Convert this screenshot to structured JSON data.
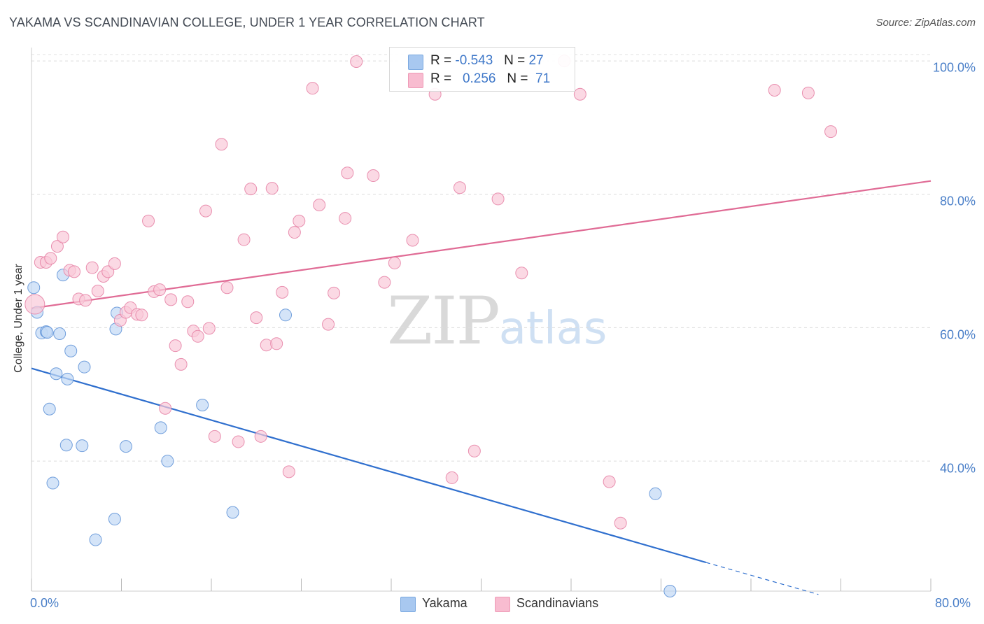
{
  "title": "YAKAMA VS SCANDINAVIAN COLLEGE, UNDER 1 YEAR CORRELATION CHART",
  "source": "Source: ZipAtlas.com",
  "watermark": {
    "zip": "ZIP",
    "atlas": "atlas"
  },
  "legend": {
    "yakama": {
      "r_label": "R =",
      "r_value": "-0.543",
      "n_label": "N =",
      "n_value": "27",
      "color": "#a8c8f0",
      "border": "#7aa8e0"
    },
    "scandinavians": {
      "r_label": "R =",
      "r_value": "0.256",
      "n_label": "N =",
      "n_value": "71",
      "color": "#f8bcd0",
      "border": "#ee9ab6"
    }
  },
  "bottom_legend": [
    "Yakama",
    "Scandinavians"
  ],
  "chart_data": {
    "type": "scatter",
    "title": "YAKAMA VS SCANDINAVIAN COLLEGE, UNDER 1 YEAR CORRELATION CHART",
    "xlabel": "",
    "ylabel": "College, Under 1 year",
    "xlim": [
      0,
      80
    ],
    "ylim": [
      20.5,
      102
    ],
    "x_tick_labels": [
      "0.0%",
      "80.0%"
    ],
    "y_tick_values": [
      40,
      60,
      80,
      100
    ],
    "y_tick_labels": [
      "40.0%",
      "60.0%",
      "80.0%",
      "100.0%"
    ],
    "series": [
      {
        "name": "Yakama",
        "color": "#5b8fd6",
        "fill": "#c2d8f5",
        "points": [
          [
            0.2,
            66.0
          ],
          [
            0.5,
            62.3
          ],
          [
            0.9,
            59.2
          ],
          [
            1.3,
            59.4
          ],
          [
            1.4,
            59.3
          ],
          [
            2.5,
            59.1
          ],
          [
            2.8,
            67.9
          ],
          [
            3.5,
            56.5
          ],
          [
            2.2,
            53.1
          ],
          [
            3.2,
            52.3
          ],
          [
            4.7,
            54.1
          ],
          [
            1.6,
            47.8
          ],
          [
            3.1,
            42.4
          ],
          [
            4.5,
            42.3
          ],
          [
            1.9,
            36.7
          ],
          [
            5.7,
            28.2
          ],
          [
            7.4,
            31.3
          ],
          [
            7.5,
            59.8
          ],
          [
            7.6,
            62.2
          ],
          [
            8.4,
            42.2
          ],
          [
            11.5,
            45.0
          ],
          [
            12.1,
            40.0
          ],
          [
            15.2,
            48.4
          ],
          [
            17.9,
            32.3
          ],
          [
            22.6,
            61.9
          ],
          [
            55.5,
            35.1
          ],
          [
            56.8,
            20.5
          ]
        ]
      },
      {
        "name": "Scandinavians",
        "color": "#e57fa3",
        "fill": "#f9c9d8",
        "points": [
          [
            0.3,
            63.5
          ],
          [
            0.8,
            69.8
          ],
          [
            1.3,
            69.8
          ],
          [
            1.7,
            70.4
          ],
          [
            2.3,
            72.2
          ],
          [
            2.8,
            73.6
          ],
          [
            3.4,
            68.6
          ],
          [
            3.8,
            68.4
          ],
          [
            4.2,
            64.3
          ],
          [
            4.8,
            64.1
          ],
          [
            5.4,
            69.0
          ],
          [
            5.9,
            65.5
          ],
          [
            6.4,
            67.7
          ],
          [
            6.8,
            68.4
          ],
          [
            7.4,
            69.6
          ],
          [
            7.9,
            61.1
          ],
          [
            8.4,
            62.3
          ],
          [
            8.8,
            63.0
          ],
          [
            9.4,
            62.0
          ],
          [
            9.8,
            61.9
          ],
          [
            10.4,
            76.0
          ],
          [
            10.9,
            65.4
          ],
          [
            11.4,
            65.7
          ],
          [
            11.9,
            47.9
          ],
          [
            12.4,
            64.2
          ],
          [
            12.8,
            57.3
          ],
          [
            13.3,
            54.5
          ],
          [
            13.9,
            63.9
          ],
          [
            14.4,
            59.5
          ],
          [
            14.8,
            58.7
          ],
          [
            15.5,
            77.5
          ],
          [
            15.8,
            59.9
          ],
          [
            16.3,
            43.7
          ],
          [
            16.9,
            87.5
          ],
          [
            17.4,
            66.0
          ],
          [
            18.4,
            42.9
          ],
          [
            18.9,
            73.2
          ],
          [
            19.5,
            80.8
          ],
          [
            20.0,
            61.5
          ],
          [
            20.4,
            43.7
          ],
          [
            20.9,
            57.4
          ],
          [
            21.4,
            80.9
          ],
          [
            21.8,
            57.6
          ],
          [
            22.3,
            65.3
          ],
          [
            22.9,
            38.4
          ],
          [
            23.4,
            74.3
          ],
          [
            23.8,
            76.0
          ],
          [
            25.0,
            95.9
          ],
          [
            25.6,
            78.4
          ],
          [
            26.4,
            60.5
          ],
          [
            26.9,
            65.2
          ],
          [
            27.9,
            76.4
          ],
          [
            28.1,
            83.2
          ],
          [
            28.9,
            99.9
          ],
          [
            30.4,
            82.8
          ],
          [
            31.4,
            66.8
          ],
          [
            32.3,
            69.7
          ],
          [
            33.9,
            73.1
          ],
          [
            35.9,
            95.0
          ],
          [
            37.4,
            37.5
          ],
          [
            38.1,
            81.0
          ],
          [
            39.4,
            41.5
          ],
          [
            41.5,
            79.3
          ],
          [
            43.6,
            68.2
          ],
          [
            47.4,
            100.0
          ],
          [
            48.8,
            95.0
          ],
          [
            51.4,
            36.9
          ],
          [
            52.4,
            30.7
          ],
          [
            66.1,
            95.6
          ],
          [
            69.1,
            95.2
          ],
          [
            71.1,
            89.4
          ]
        ]
      }
    ],
    "trend_lines": [
      {
        "series": "Yakama",
        "x": [
          0,
          60
        ],
        "y": [
          53.9,
          24.8
        ],
        "dashed_extension": {
          "x": [
            60,
            70
          ],
          "y": [
            24.8,
            20.0
          ]
        }
      },
      {
        "series": "Scandinavians",
        "x": [
          0,
          80
        ],
        "y": [
          62.9,
          82.0
        ]
      }
    ]
  }
}
